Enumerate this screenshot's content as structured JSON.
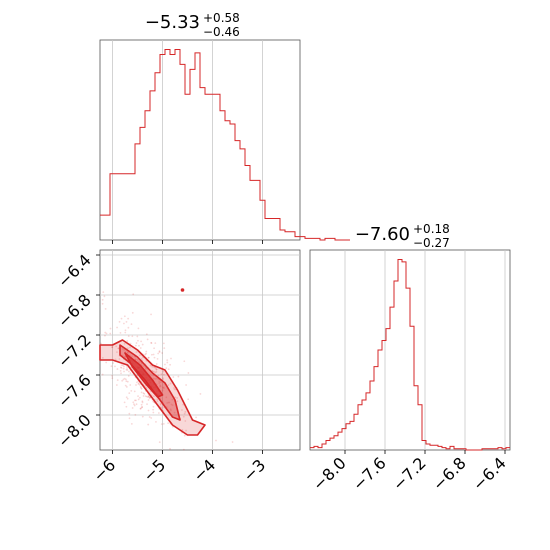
{
  "chart_data": {
    "type": "corner",
    "color": "#d62728",
    "grid": true,
    "panels": {
      "param1": {
        "type": "histogram",
        "title": {
          "median": "−5.33",
          "plus": "+0.58",
          "minus": "−0.46"
        },
        "xlim": [
          -6.25,
          -2.25
        ],
        "xticks": [
          "−6",
          "−5",
          "−4",
          "−3"
        ],
        "x_tick_values": [
          -6,
          -5,
          -4,
          -3
        ],
        "bin_width": 0.1,
        "bin_start": -6.25,
        "counts": [
          15,
          15,
          40,
          40,
          40,
          40,
          40,
          58,
          68,
          78,
          90,
          101,
          112,
          115,
          112,
          115,
          106,
          88,
          103,
          113,
          92,
          88,
          88,
          88,
          78,
          72,
          70,
          60,
          55,
          45,
          36,
          36,
          24,
          13,
          13,
          13,
          6,
          5,
          5,
          2,
          2,
          1,
          1,
          1,
          0,
          1,
          1,
          0,
          0,
          0
        ]
      },
      "param2": {
        "type": "histogram",
        "title": {
          "median": "−7.60",
          "plus": "+0.18",
          "minus": "−0.27"
        },
        "xlim": [
          -8.35,
          -6.35
        ],
        "xticks": [
          "−8.0",
          "−7.6",
          "−7.2",
          "−6.8",
          "−6.4"
        ],
        "x_tick_values": [
          -8.0,
          -7.6,
          -7.2,
          -6.8,
          -6.4
        ],
        "bin_width": 0.04,
        "bin_start": -8.35,
        "counts": [
          2,
          3,
          2,
          5,
          8,
          10,
          12,
          15,
          18,
          22,
          24,
          30,
          38,
          42,
          48,
          58,
          70,
          84,
          92,
          102,
          120,
          142,
          160,
          158,
          136,
          104,
          54,
          38,
          8,
          5,
          4,
          4,
          3,
          2,
          1,
          3,
          1,
          1,
          1,
          0,
          0,
          0,
          0,
          1,
          1,
          1,
          1,
          2,
          1,
          2
        ]
      },
      "joint": {
        "type": "2d-density",
        "xlim": [
          -6.25,
          -2.25
        ],
        "ylim": [
          -8.35,
          -6.35
        ],
        "xticks": [
          "−6",
          "−5",
          "−4",
          "−3"
        ],
        "yticks": [
          "−6.4",
          "−6.8",
          "−7.2",
          "−7.6",
          "−8.0"
        ],
        "y_tick_values": [
          -6.4,
          -6.8,
          -7.2,
          -7.6,
          -8.0
        ],
        "contours": [
          {
            "level": "outer",
            "points": [
              [
                -6.25,
                -7.3
              ],
              [
                -6.0,
                -7.3
              ],
              [
                -5.8,
                -7.25
              ],
              [
                -5.5,
                -7.35
              ],
              [
                -5.2,
                -7.5
              ],
              [
                -4.95,
                -7.55
              ],
              [
                -4.7,
                -7.75
              ],
              [
                -4.55,
                -7.9
              ],
              [
                -4.4,
                -8.05
              ],
              [
                -4.15,
                -8.1
              ],
              [
                -4.3,
                -8.2
              ],
              [
                -4.5,
                -8.2
              ],
              [
                -4.8,
                -8.1
              ],
              [
                -5.1,
                -7.9
              ],
              [
                -5.4,
                -7.7
              ],
              [
                -5.7,
                -7.5
              ],
              [
                -6.0,
                -7.45
              ],
              [
                -6.25,
                -7.45
              ]
            ]
          },
          {
            "level": "middle",
            "points": [
              [
                -5.85,
                -7.3
              ],
              [
                -5.5,
                -7.42
              ],
              [
                -5.2,
                -7.58
              ],
              [
                -4.95,
                -7.68
              ],
              [
                -4.75,
                -7.85
              ],
              [
                -4.65,
                -8.05
              ],
              [
                -4.8,
                -8.02
              ],
              [
                -5.05,
                -7.85
              ],
              [
                -5.35,
                -7.65
              ],
              [
                -5.65,
                -7.48
              ],
              [
                -5.85,
                -7.4
              ]
            ]
          },
          {
            "level": "inner",
            "points": [
              [
                -5.75,
                -7.38
              ],
              [
                -5.45,
                -7.5
              ],
              [
                -5.2,
                -7.65
              ],
              [
                -5.0,
                -7.8
              ],
              [
                -5.1,
                -7.82
              ],
              [
                -5.35,
                -7.68
              ],
              [
                -5.6,
                -7.52
              ]
            ]
          }
        ],
        "isolated_point": [
          -4.6,
          -6.75
        ]
      }
    }
  }
}
